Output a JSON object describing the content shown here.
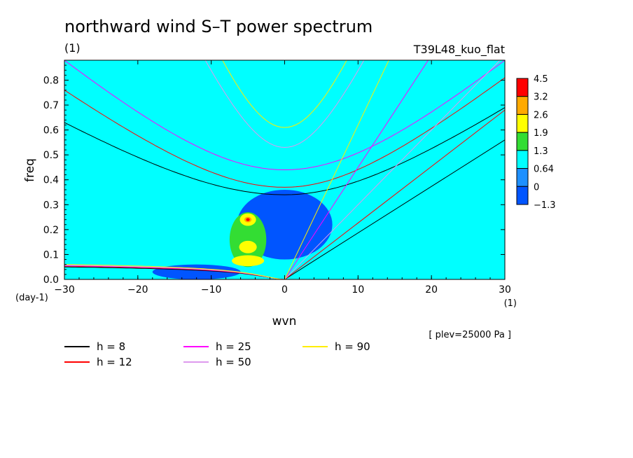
{
  "figure": {
    "title": "northward wind S–T power spectrum",
    "units_label": "(1)",
    "experiment": "T39L48_kuo_flat",
    "plev_note": "[ plev=25000 Pa ]"
  },
  "colors": {
    "background_field": "#00ffff",
    "h_8": "#000000",
    "h_12": "#ff0000",
    "h_25": "#ff00ff",
    "h_50": "#dd99ee",
    "h_90": "#ffee00"
  },
  "chart_data": {
    "type": "heatmap",
    "title": "northward wind S–T power spectrum",
    "xlabel": "wvn",
    "ylabel": "freq",
    "x_unit_label": "(1)",
    "y_unit_label": "(day-1)",
    "xlim": [
      -30,
      30
    ],
    "ylim": [
      0,
      0.88
    ],
    "x_ticks": [
      -30,
      -20,
      -10,
      0,
      10,
      20,
      30
    ],
    "x_tick_labels": [
      "−30",
      "−20",
      "−10",
      "0",
      "10",
      "20",
      "30"
    ],
    "y_ticks": [
      0,
      0.1,
      0.2,
      0.3,
      0.4,
      0.5,
      0.6,
      0.7,
      0.8
    ],
    "y_tick_labels": [
      "0.0",
      "0.1",
      "0.2",
      "0.3",
      "0.4",
      "0.5",
      "0.6",
      "0.7",
      "0.8"
    ],
    "colorbar": {
      "levels": [
        "4.5",
        "3.2",
        "2.6",
        "1.9",
        "1.3",
        "0.64",
        "0",
        "−1.3"
      ],
      "colors": [
        "#ff0000",
        "#ffaa00",
        "#ffff00",
        "#33dd33",
        "#00ffff",
        "#1e90ff",
        "#0055ff"
      ]
    },
    "contour_fill": [
      {
        "level": "2.6",
        "x": -5,
        "y": 0.24,
        "rx": 1.1,
        "ry": 0.025
      },
      {
        "level": "2.6",
        "x": -5,
        "y": 0.13,
        "rx": 1.2,
        "ry": 0.025
      },
      {
        "level": "2.6",
        "x": -5,
        "y": 0.075,
        "rx": 2.2,
        "ry": 0.022
      },
      {
        "level": "1.9",
        "x": -5,
        "y": 0.16,
        "rx": 2.5,
        "ry": 0.11
      },
      {
        "level": "3.2",
        "x": -5,
        "y": 0.24,
        "rx": 0.5,
        "ry": 0.011
      },
      {
        "level": "4.5",
        "x": -5,
        "y": 0.24,
        "rx": 0.25,
        "ry": 0.006
      },
      {
        "level": "0",
        "x": 0,
        "y": 0.22,
        "rx": 6.5,
        "ry": 0.14
      },
      {
        "level": "0",
        "x": -12,
        "y": 0.03,
        "rx": 6,
        "ry": 0.03
      }
    ],
    "legend": [
      {
        "label": "h =  8",
        "h": 8,
        "color": "#000000"
      },
      {
        "label": "h = 12",
        "h": 12,
        "color": "#ff0000"
      },
      {
        "label": "h = 25",
        "h": 25,
        "color": "#ff00ff"
      },
      {
        "label": "h = 50",
        "h": 50,
        "color": "#dd99ee"
      },
      {
        "label": "h = 90",
        "h": 90,
        "color": "#ffee00"
      }
    ],
    "series": [
      {
        "name": "h =  8",
        "rossby_at_x_minus30": 0.05,
        "mrg_min_x0": 0.34,
        "mrg_at_x_minus30": 0.63,
        "mrg_at_x30": 0.69,
        "kelvin_at_x30": 0.56
      },
      {
        "name": "h = 12",
        "rossby_at_x_minus30": 0.053,
        "mrg_min_x0": 0.37,
        "mrg_at_x_minus30": 0.76,
        "mrg_at_x30": 0.81,
        "kelvin_at_x30": 0.68
      },
      {
        "name": "h = 25",
        "rossby_at_x_minus30": 0.055,
        "mrg_min_x0": 0.44,
        "mrg_at_x30": 0.88,
        "kelvin_at_x_end": 0.88
      },
      {
        "name": "h = 50",
        "rossby_at_x_minus30": 0.057,
        "mrg_min_x0": 0.53,
        "kelvin_at_x_end": 0.88
      },
      {
        "name": "h = 90",
        "rossby_at_x_minus30": 0.06,
        "mrg_min_x0": 0.61,
        "kelvin_at_x_end": 0.88
      }
    ]
  }
}
